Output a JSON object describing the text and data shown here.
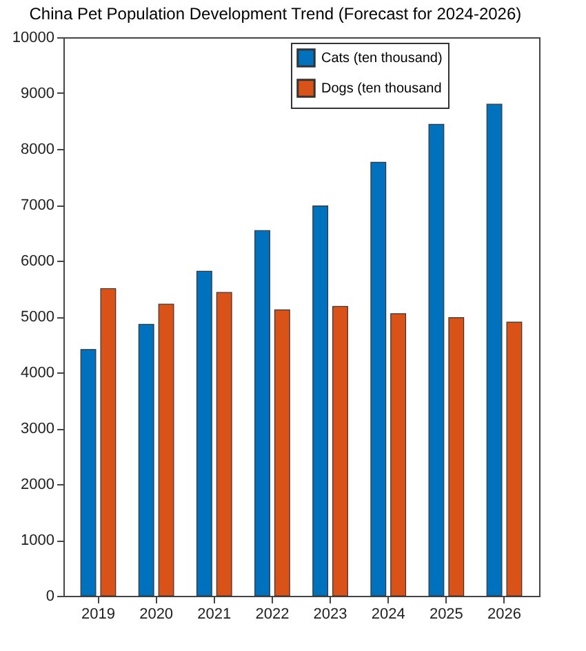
{
  "chart_data": {
    "type": "bar",
    "title": "China Pet Population Development Trend (Forecast for 2024-2026)",
    "categories": [
      "2019",
      "2020",
      "2021",
      "2022",
      "2023",
      "2024",
      "2025",
      "2026"
    ],
    "series": [
      {
        "name": "Cats (ten thousand)",
        "color": "#0072bd",
        "values": [
          4410,
          4860,
          5810,
          6540,
          6980,
          7760,
          8440,
          8800
        ]
      },
      {
        "name": "Dogs (ten thousand",
        "color": "#d95319",
        "values": [
          5500,
          5220,
          5430,
          5120,
          5180,
          5050,
          4980,
          4900
        ]
      }
    ],
    "ylim": [
      0,
      10000
    ],
    "yticks": [
      0,
      1000,
      2000,
      3000,
      4000,
      5000,
      6000,
      7000,
      8000,
      9000,
      10000
    ],
    "grid": false,
    "legend": "top right"
  }
}
